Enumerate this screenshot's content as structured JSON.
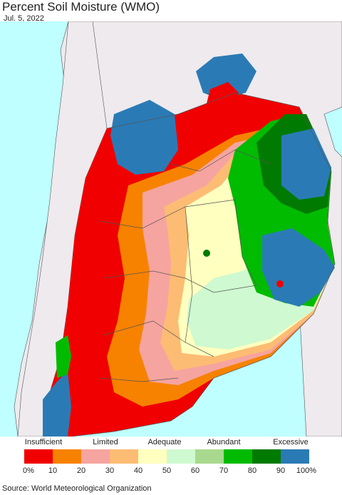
{
  "title": "Percent Soil Moisture (WMO)",
  "date": "Jul. 5, 2022",
  "legend": {
    "categories": [
      {
        "label": "Insufficient"
      },
      {
        "label": "Limited"
      },
      {
        "label": "Adequate"
      },
      {
        "label": "Abundant"
      },
      {
        "label": "Excessive"
      }
    ],
    "colors": [
      "#f00000",
      "#f78200",
      "#f6a4a0",
      "#fdbc73",
      "#ffffbf",
      "#cff9d0",
      "#a9d98e",
      "#00bb00",
      "#007a00",
      "#2a7bb5"
    ],
    "ticks": [
      "0%",
      "10",
      "20",
      "30",
      "40",
      "50",
      "60",
      "70",
      "80",
      "90",
      "100%"
    ]
  },
  "source": "Source: World Meteorological Organization",
  "map_colors": {
    "ocean": "#bfffff",
    "land_outside": "#eeeaee",
    "border": "#444444"
  }
}
